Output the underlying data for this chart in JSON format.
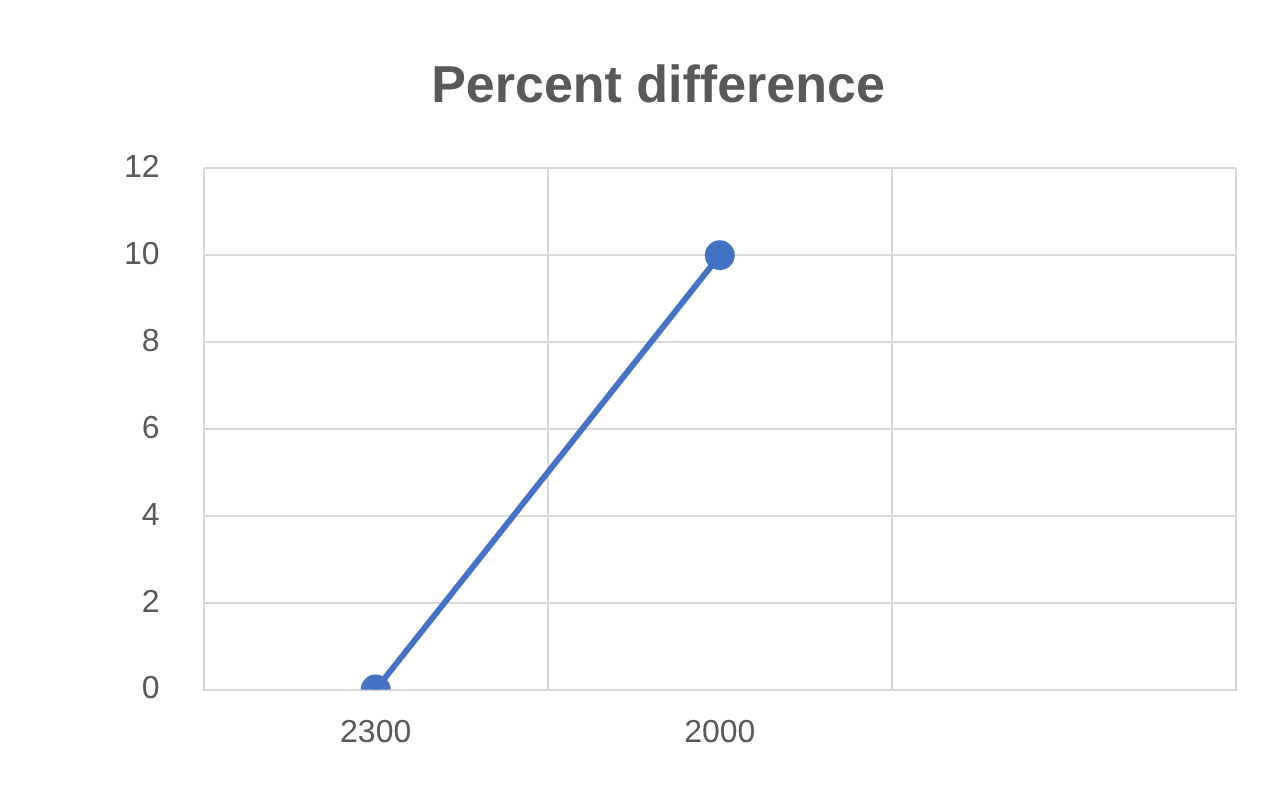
{
  "chart_data": {
    "type": "line",
    "title": "Percent difference",
    "categories": [
      "2300",
      "2000",
      null
    ],
    "series": [
      {
        "color": "#4472c4",
        "values": [
          0,
          10,
          null
        ]
      }
    ],
    "ylim": [
      0,
      12
    ],
    "yticks": [
      0,
      2,
      4,
      6,
      8,
      10,
      12
    ],
    "grid": true,
    "legend": false,
    "marker": "circle",
    "line_style": "solid"
  }
}
